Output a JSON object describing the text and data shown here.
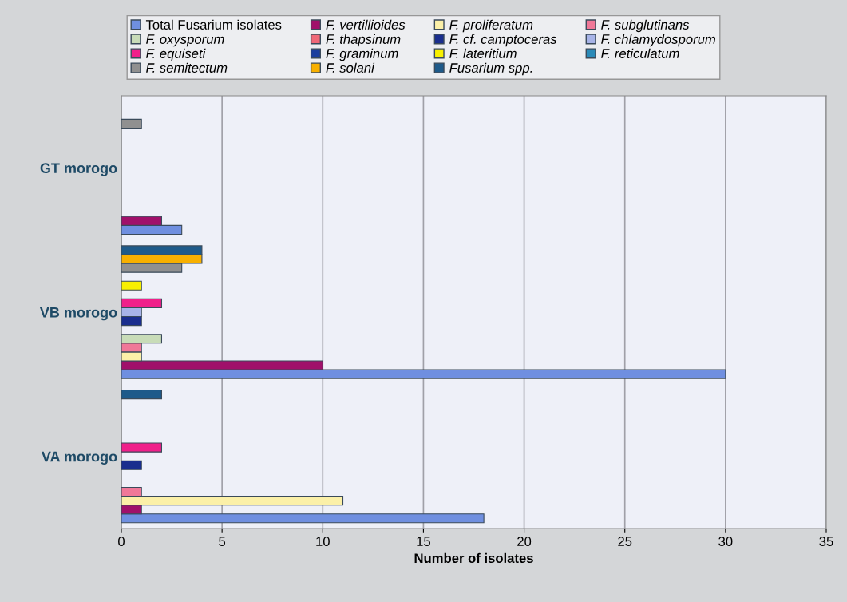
{
  "chart_data": {
    "type": "bar",
    "orientation": "horizontal",
    "xlabel": "Number of isolates",
    "categories": [
      "GT morogo",
      "VB morogo",
      "VA morogo"
    ],
    "series": [
      {
        "name": "Total Fusarium isolates",
        "color": "#6f8fe0",
        "values": [
          3,
          30,
          18
        ]
      },
      {
        "name": "F. vertillioides",
        "color": "#a0106a",
        "values": [
          2,
          10,
          1
        ]
      },
      {
        "name": "F. proliferatum",
        "color": "#fbf0a8",
        "values": [
          null,
          1,
          11
        ]
      },
      {
        "name": "F. subglutinans",
        "color": "#f07898",
        "values": [
          null,
          1,
          1
        ]
      },
      {
        "name": "F. oxysporum",
        "color": "#c8dcb8",
        "values": [
          null,
          2,
          null
        ]
      },
      {
        "name": "F. thapsinum",
        "color": "#f06878",
        "values": [
          null,
          null,
          null
        ]
      },
      {
        "name": "F. cf. camptoceras",
        "color": "#1a2e8e",
        "values": [
          null,
          1,
          1
        ]
      },
      {
        "name": "F. chlamydosporum",
        "color": "#a8b4e8",
        "values": [
          null,
          1,
          null
        ]
      },
      {
        "name": "F. equiseti",
        "color": "#f0208a",
        "values": [
          null,
          2,
          2
        ]
      },
      {
        "name": "F. graminum",
        "color": "#1a3e9e",
        "values": [
          null,
          null,
          null
        ]
      },
      {
        "name": "F. lateritium",
        "color": "#f8f000",
        "values": [
          null,
          1,
          null
        ]
      },
      {
        "name": "F. reticulatum",
        "color": "#2a8ab8",
        "values": [
          null,
          null,
          null
        ]
      },
      {
        "name": "F. semitectum",
        "color": "#909090",
        "values": [
          1,
          3,
          null
        ]
      },
      {
        "name": "F. solani",
        "color": "#f8b000",
        "values": [
          null,
          4,
          null
        ]
      },
      {
        "name": "Fusarium spp.",
        "color": "#1e5a8a",
        "values": [
          null,
          4,
          2
        ]
      }
    ],
    "xlim": [
      0,
      35
    ],
    "xticks": [
      0,
      5,
      10,
      15,
      20,
      25,
      30,
      35
    ],
    "grid": "x",
    "legend": "top"
  }
}
